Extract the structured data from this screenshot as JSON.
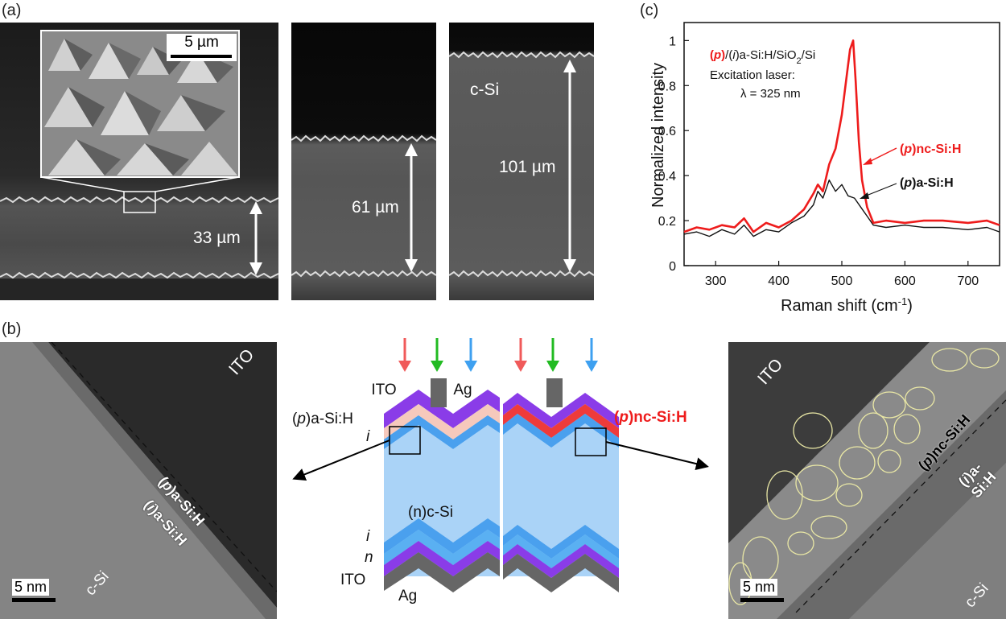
{
  "panels": {
    "a": {
      "letter": "(a)",
      "inset_scale": "5 µm",
      "label_33": "33 µm",
      "label_61": "61 µm",
      "label_101": "101 µm",
      "label_csi": "c-Si"
    },
    "b": {
      "letter": "(b)",
      "left_tem": {
        "ito": "ITO",
        "p_layer": "(p)a-Si:H",
        "i_layer": "(i)a-Si:H",
        "csi": "c-Si",
        "scale": "5 nm"
      },
      "schematic": {
        "ito_top": "ITO",
        "ag_top": "Ag",
        "p_asi": "(p)a-Si:H",
        "i_top": "i",
        "n_csi": "(n)c-Si",
        "i_bottom": "i",
        "n_bottom": "n",
        "ito_bottom": "ITO",
        "ag_bottom": "Ag",
        "p_ncsi": "(p)nc-Si:H"
      },
      "right_tem": {
        "ito": "ITO",
        "p_layer": "(p)nc-Si:H",
        "i_layer": "(i)a-Si:H",
        "csi": "c-Si",
        "scale": "5 nm"
      }
    },
    "c": {
      "letter": "(c)",
      "legend_title": "(p)/(i)a-Si:H/SiO2/Si",
      "legend_line2": "Excitation laser:",
      "legend_line3": "λ = 325 nm",
      "annot_red": "(p)nc-Si:H",
      "annot_black": "(p)a-Si:H"
    }
  },
  "chart_data": {
    "type": "line",
    "xlabel": "Raman shift (cm-1)",
    "ylabel": "Normalized intensity",
    "xlim": [
      250,
      750
    ],
    "ylim": [
      0,
      1.08
    ],
    "xticks": [
      300,
      400,
      500,
      600,
      700
    ],
    "yticks": [
      0,
      0.2,
      0.4,
      0.6,
      0.8,
      1
    ],
    "series": [
      {
        "name": "(p)nc-Si:H",
        "color": "#ee1c1c",
        "x": [
          250,
          270,
          290,
          310,
          330,
          345,
          360,
          380,
          400,
          420,
          440,
          455,
          462,
          470,
          480,
          490,
          500,
          508,
          513,
          518,
          522,
          527,
          532,
          540,
          550,
          570,
          600,
          630,
          660,
          700,
          730,
          750
        ],
        "y": [
          0.15,
          0.17,
          0.16,
          0.18,
          0.17,
          0.21,
          0.15,
          0.19,
          0.17,
          0.2,
          0.25,
          0.32,
          0.36,
          0.33,
          0.45,
          0.52,
          0.67,
          0.85,
          0.96,
          1.0,
          0.82,
          0.55,
          0.38,
          0.26,
          0.19,
          0.2,
          0.19,
          0.2,
          0.2,
          0.19,
          0.2,
          0.18
        ]
      },
      {
        "name": "(p)a-Si:H",
        "color": "#111111",
        "x": [
          250,
          270,
          290,
          310,
          330,
          345,
          360,
          380,
          400,
          420,
          440,
          455,
          462,
          470,
          480,
          490,
          500,
          510,
          520,
          530,
          540,
          550,
          570,
          600,
          630,
          660,
          700,
          730,
          750
        ],
        "y": [
          0.14,
          0.15,
          0.13,
          0.16,
          0.14,
          0.18,
          0.13,
          0.16,
          0.15,
          0.19,
          0.22,
          0.27,
          0.33,
          0.3,
          0.38,
          0.33,
          0.36,
          0.31,
          0.3,
          0.26,
          0.22,
          0.18,
          0.17,
          0.18,
          0.17,
          0.17,
          0.16,
          0.17,
          0.15
        ]
      }
    ]
  },
  "colors": {
    "red": "#ee1c1c",
    "purple": "#8a3ce8",
    "blue": "#4aa0ee",
    "light_blue": "#aad3f7",
    "pink": "#f6c9bc",
    "gray": "#666666",
    "arrow_red": "#f05a5a",
    "arrow_green": "#22bb22",
    "arrow_blue": "#3ea0f0"
  }
}
